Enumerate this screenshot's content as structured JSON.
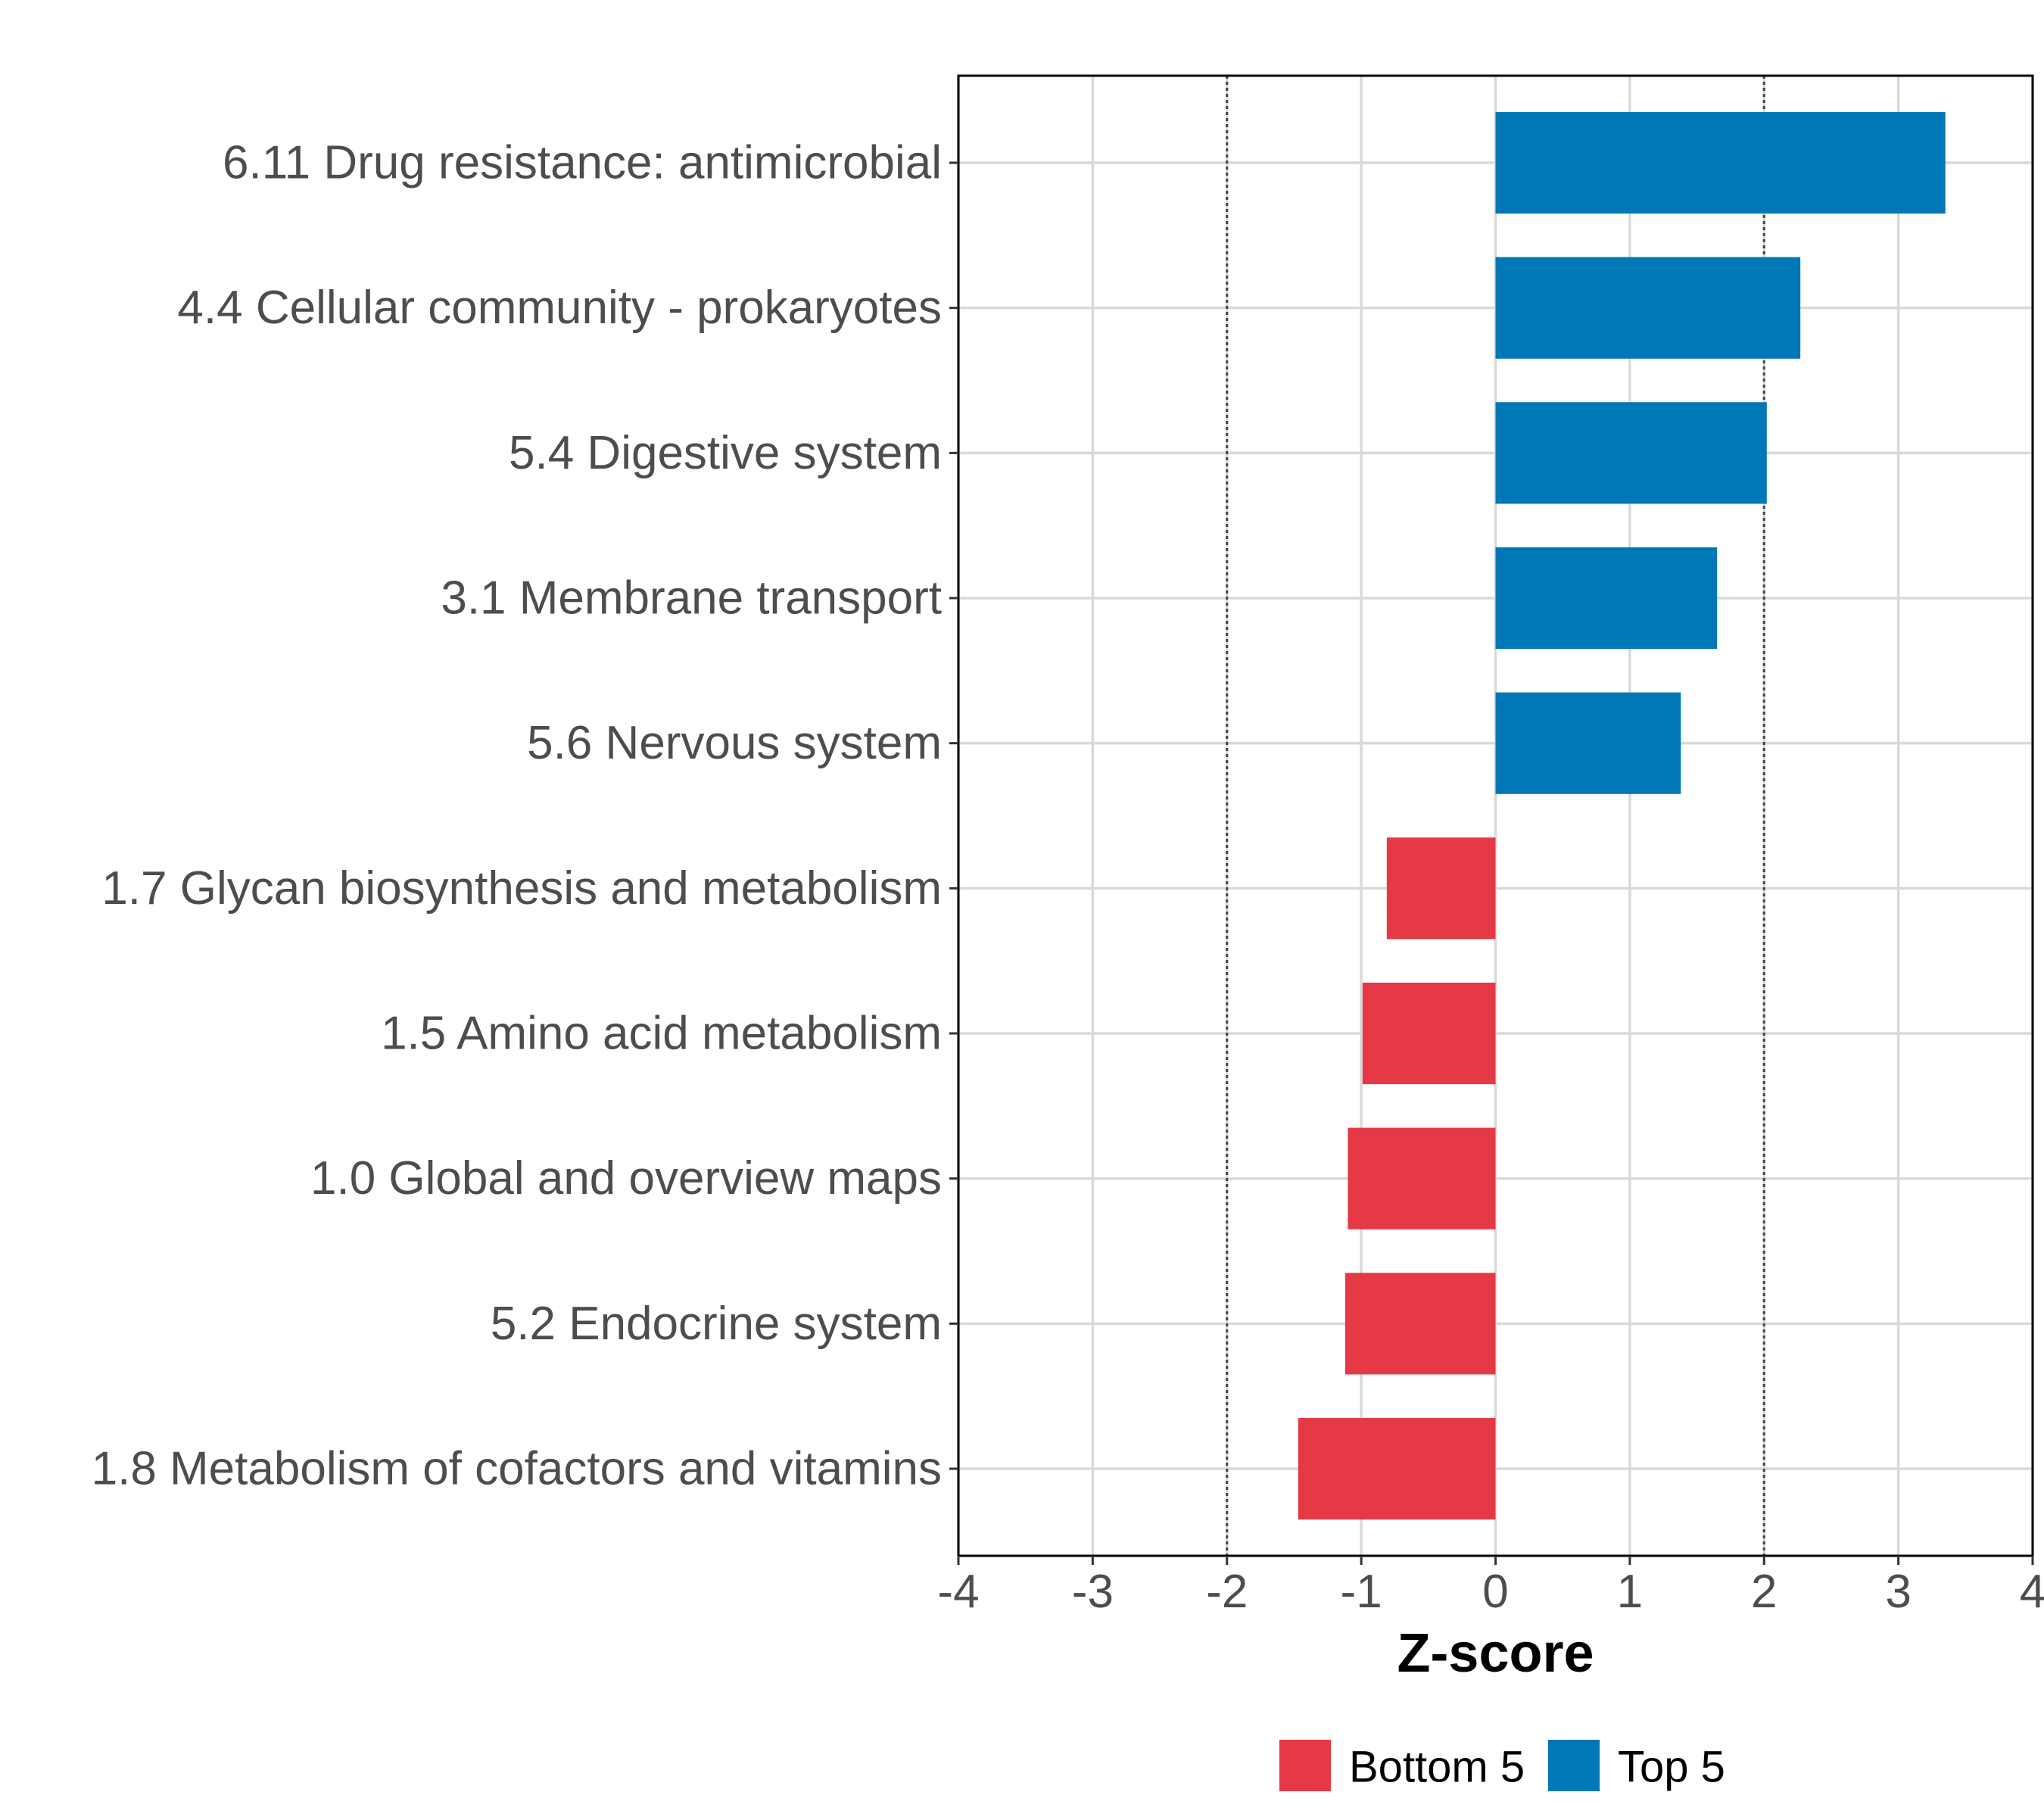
{
  "chart_data": {
    "type": "bar",
    "orientation": "horizontal",
    "title": "",
    "xlabel": "Z-score",
    "ylabel": "",
    "xlim": [
      -4,
      4
    ],
    "xticks": [
      -4,
      -3,
      -2,
      -1,
      0,
      1,
      2,
      3,
      4
    ],
    "reference_lines": [
      -2,
      2
    ],
    "grid": true,
    "legend_position": "bottom",
    "categories": [
      "6.11 Drug resistance: antimicrobial",
      "4.4 Cellular community - prokaryotes",
      "5.4 Digestive system",
      "3.1 Membrane transport",
      "5.6 Nervous system",
      "1.7 Glycan biosynthesis and metabolism",
      "1.5 Amino acid metabolism",
      "1.0 Global and overview maps",
      "5.2 Endocrine system",
      "1.8 Metabolism of cofactors and vitamins"
    ],
    "values": [
      3.35,
      2.27,
      2.02,
      1.65,
      1.38,
      -0.81,
      -0.99,
      -1.1,
      -1.12,
      -1.47
    ],
    "groups": [
      "Top 5",
      "Top 5",
      "Top 5",
      "Top 5",
      "Top 5",
      "Bottom 5",
      "Bottom 5",
      "Bottom 5",
      "Bottom 5",
      "Bottom 5"
    ],
    "legend": [
      {
        "name": "Bottom 5",
        "color": "#E63946"
      },
      {
        "name": "Top 5",
        "color": "#0077B6"
      }
    ]
  }
}
